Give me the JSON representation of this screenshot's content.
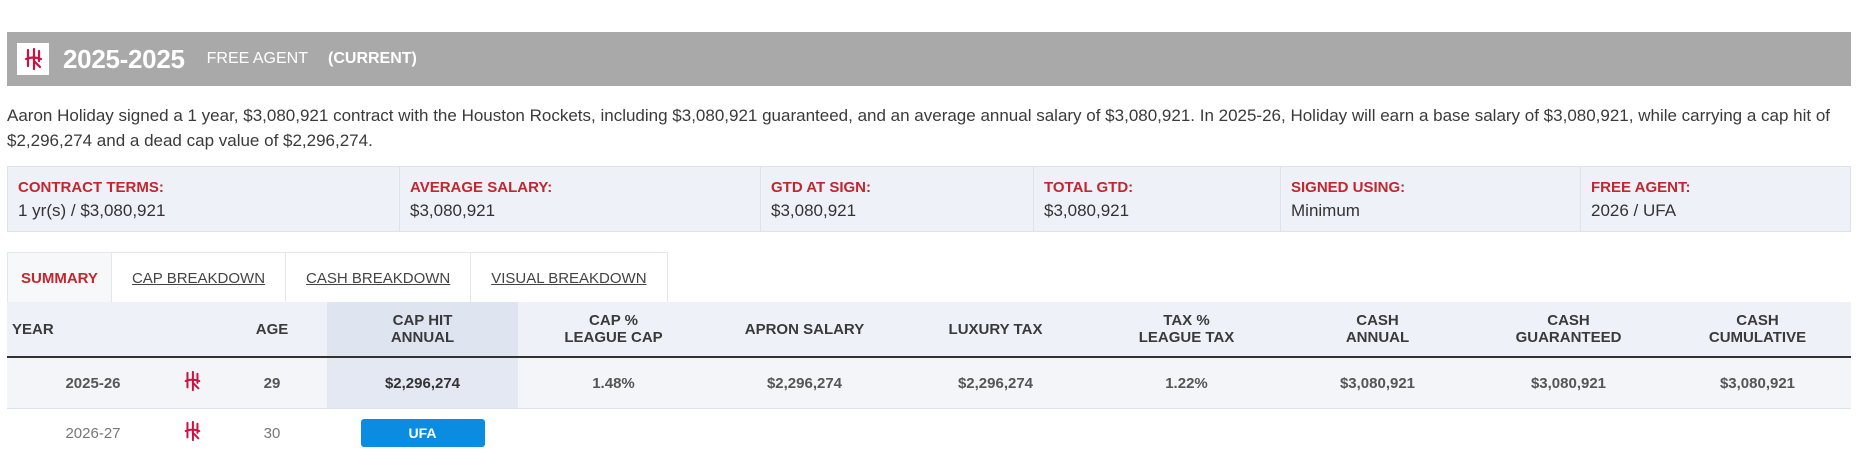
{
  "header": {
    "season": "2025-2025",
    "status": "FREE AGENT",
    "current": "(CURRENT)",
    "brand_color": "#ce1141"
  },
  "summary": "Aaron Holiday signed a 1 year, $3,080,921 contract with the Houston Rockets, including $3,080,921 guaranteed, and an average annual salary of $3,080,921. In 2025-26, Holiday will earn a base salary of $3,080,921, while carrying a cap hit of $2,296,274 and a dead cap value of $2,296,274.",
  "terms": [
    {
      "label": "CONTRACT TERMS:",
      "value": "1 yr(s) / $3,080,921"
    },
    {
      "label": "AVERAGE SALARY:",
      "value": "$3,080,921"
    },
    {
      "label": "GTD AT SIGN:",
      "value": "$3,080,921"
    },
    {
      "label": "TOTAL GTD:",
      "value": "$3,080,921"
    },
    {
      "label": "SIGNED USING:",
      "value": "Minimum"
    },
    {
      "label": "FREE AGENT:",
      "value": "2026 / UFA"
    }
  ],
  "tabs": [
    "SUMMARY",
    "CAP BREAKDOWN",
    "CASH BREAKDOWN",
    "VISUAL BREAKDOWN"
  ],
  "table": {
    "headers": {
      "year": "YEAR",
      "age": "AGE",
      "cap_hit_1": "CAP HIT",
      "cap_hit_2": "ANNUAL",
      "cap_pct_1": "CAP %",
      "cap_pct_2": "LEAGUE CAP",
      "apron": "APRON SALARY",
      "lux": "LUXURY TAX",
      "tax_pct_1": "TAX %",
      "tax_pct_2": "LEAGUE TAX",
      "cash_annual_1": "CASH",
      "cash_annual_2": "ANNUAL",
      "cash_gtd_1": "CASH",
      "cash_gtd_2": "GUARANTEED",
      "cash_cum_1": "CASH",
      "cash_cum_2": "CUMULATIVE"
    },
    "rows": [
      {
        "year": "2025-26",
        "team_icon": "rockets-logo-icon",
        "age": "29",
        "cap_hit": "$2,296,274",
        "cap_pct": "1.48%",
        "apron": "$2,296,274",
        "lux": "$2,296,274",
        "tax_pct": "1.22%",
        "cash_annual": "$3,080,921",
        "cash_gtd": "$3,080,921",
        "cash_cum": "$3,080,921"
      },
      {
        "year": "2026-27",
        "team_icon": "rockets-logo-icon",
        "age": "30",
        "badge": "UFA",
        "badge_color": "#0a8de0"
      }
    ]
  }
}
